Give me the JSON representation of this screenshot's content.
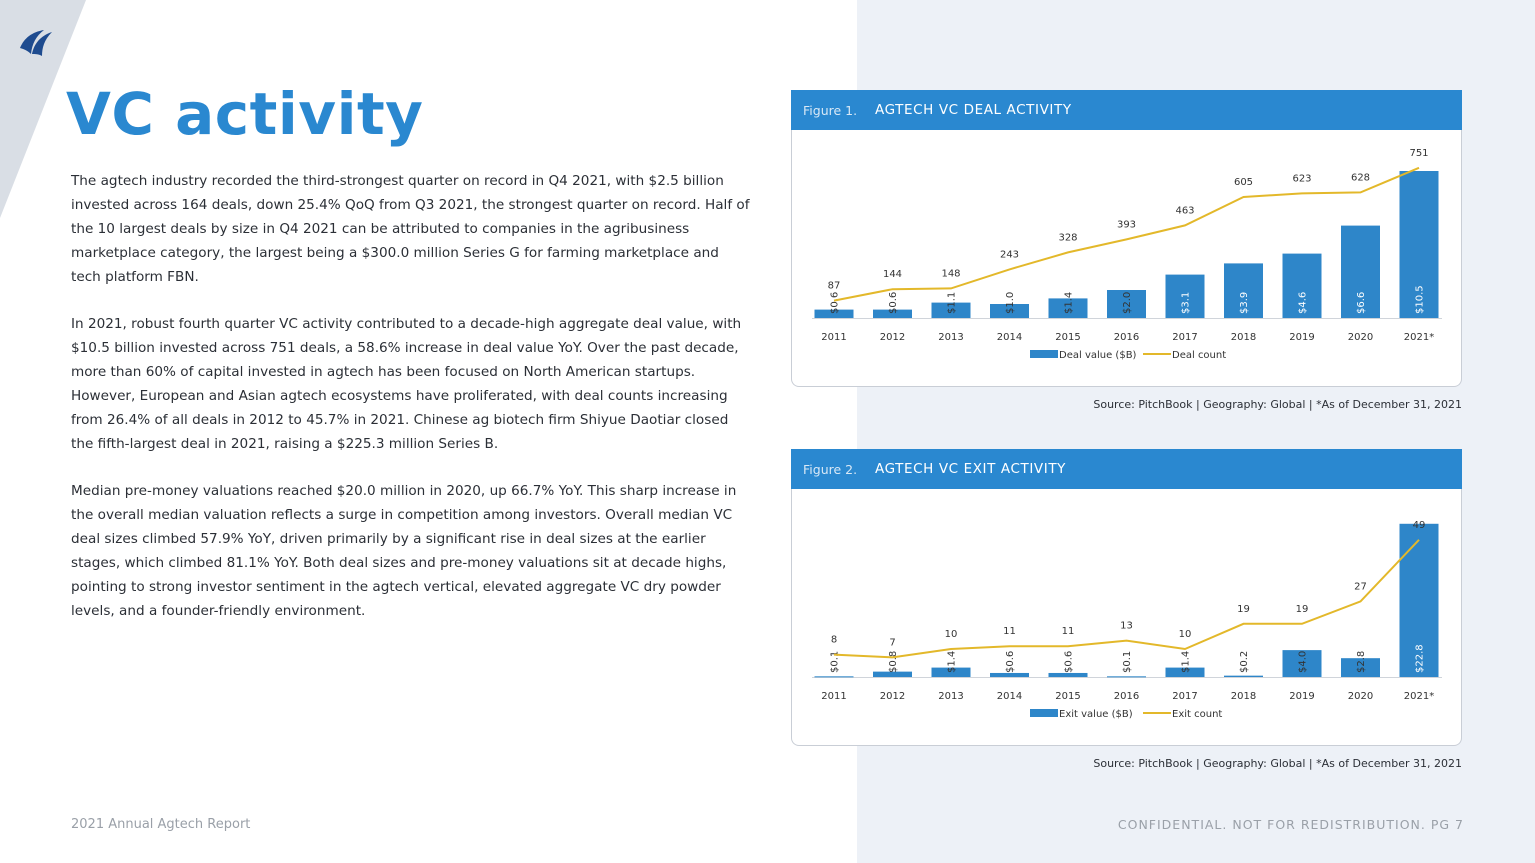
{
  "page": {
    "title": "VC activity",
    "logo": "PitchBook sail logo",
    "paragraphs": [
      "The agtech industry recorded the third-strongest quarter on record in Q4 2021, with $2.5 billion invested across 164 deals, down 25.4% QoQ from Q3 2021, the strongest quarter on record. Half of the 10 largest deals by size in Q4 2021 can be attributed to companies in the agribusiness marketplace category, the largest being a $300.0 million Series G for farming marketplace and tech platform FBN.",
      "In 2021, robust fourth quarter VC activity contributed to a decade-high aggregate deal value, with $10.5 billion invested across 751 deals, a 58.6% increase in deal value YoY. Over the past decade, more than 60% of capital invested in agtech has been focused on North American startups. However, European and Asian agtech ecosystems have proliferated, with deal counts increasing from 26.4% of all deals in 2012 to 45.7% in 2021. Chinese ag biotech firm Shiyue Daotiar closed the fifth-largest deal in 2021, raising a $225.3 million Series B.",
      "Median pre-money valuations reached $20.0 million in 2020, up 66.7% YoY. This sharp increase in the overall median valuation reflects a surge in competition among investors. Overall median VC deal sizes climbed 57.9% YoY, driven primarily by a significant rise in deal sizes at the earlier stages, which climbed 81.1% YoY. Both deal sizes and pre-money valuations sit at decade highs, pointing to strong investor sentiment in the agtech vertical, elevated aggregate VC dry powder levels, and a founder-friendly environment."
    ],
    "footer_left": "2021 Annual Agtech Report",
    "footer_right": "CONFIDENTIAL. NOT FOR REDISTRIBUTION.  PG 7"
  },
  "colors": {
    "accent": "#2a88d0",
    "bar": "#2e86c9",
    "line": "#e3b82a"
  },
  "figures": [
    {
      "number": "Figure 1.",
      "title": "AGTECH VC DEAL ACTIVITY",
      "source": "Source: PitchBook  |  Geography: Global  |  *As of December 31, 2021"
    },
    {
      "number": "Figure 2.",
      "title": "AGTECH VC EXIT ACTIVITY",
      "source": "Source: PitchBook  |  Geography: Global  |  *As of December 31, 2021"
    }
  ],
  "chart_data": [
    {
      "type": "bar",
      "categories": [
        "2011",
        "2012",
        "2013",
        "2014",
        "2015",
        "2016",
        "2017",
        "2018",
        "2019",
        "2020",
        "2021*"
      ],
      "series": [
        {
          "name": "Deal value ($B)",
          "type": "bar",
          "values": [
            0.6,
            0.6,
            1.1,
            1.0,
            1.4,
            2.0,
            3.1,
            3.9,
            4.6,
            6.6,
            10.5
          ],
          "labels": [
            "$0.6",
            "$0.6",
            "$1.1",
            "$1.0",
            "$1.4",
            "$2.0",
            "$3.1",
            "$3.9",
            "$4.6",
            "$6.6",
            "$10.5"
          ],
          "ylim": [
            0,
            12
          ]
        },
        {
          "name": "Deal count",
          "type": "line",
          "values": [
            87,
            144,
            148,
            243,
            328,
            393,
            463,
            605,
            623,
            628,
            751
          ],
          "ylim": [
            0,
            840
          ]
        }
      ],
      "legend": "bottom",
      "grid": false
    },
    {
      "type": "bar",
      "categories": [
        "2011",
        "2012",
        "2013",
        "2014",
        "2015",
        "2016",
        "2017",
        "2018",
        "2019",
        "2020",
        "2021*"
      ],
      "series": [
        {
          "name": "Exit value ($B)",
          "type": "bar",
          "values": [
            0.1,
            0.8,
            1.4,
            0.6,
            0.6,
            0.1,
            1.4,
            0.2,
            4.0,
            2.8,
            22.8
          ],
          "labels": [
            "$0.1",
            "$0.8",
            "$1.4",
            "$0.6",
            "$0.6",
            "$0.1",
            "$1.4",
            "$0.2",
            "$4.0",
            "$2.8",
            "$22.8"
          ],
          "ylim": [
            0,
            25
          ]
        },
        {
          "name": "Exit count",
          "type": "line",
          "values": [
            8,
            7,
            10,
            11,
            11,
            13,
            10,
            19,
            19,
            27,
            49
          ],
          "ylim": [
            0,
            60
          ]
        }
      ],
      "legend": "bottom",
      "grid": false
    }
  ]
}
